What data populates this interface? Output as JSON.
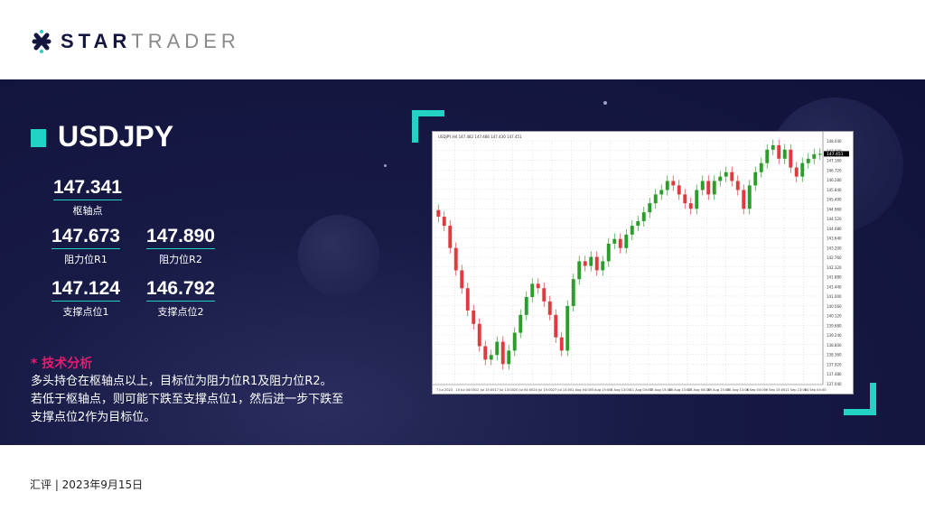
{
  "brand": {
    "word1": "STAR",
    "word2": "TRADER"
  },
  "symbol": "USDJPY",
  "levels": {
    "pivot": {
      "value": "147.341",
      "label": "枢轴点"
    },
    "r1": {
      "value": "147.673",
      "label": "阻力位R1"
    },
    "r2": {
      "value": "147.890",
      "label": "阻力位R2"
    },
    "s1": {
      "value": "147.124",
      "label": "支撑点位1"
    },
    "s2": {
      "value": "146.792",
      "label": "支撑点位2"
    }
  },
  "analysis": {
    "title": "* 技术分析",
    "lines": [
      "多头持仓在枢轴点以上，目标位为阻力位R1及阻力位R2。",
      "若低于枢轴点，则可能下跌至支撑点位1，然后进一步下跌至",
      "支撑点位2作为目标位。"
    ]
  },
  "footer": "汇评 | 2023年9月15日",
  "colors": {
    "accent": "#22d3c5",
    "highlight": "#e8196e",
    "navy": "#14163f",
    "up": "#2a9d2a",
    "down": "#e0393e"
  },
  "chart_data": {
    "type": "candlestick",
    "title": "USDJPY,H4 147.482 147.486 147.430 147.451",
    "ylim": [
      136.99,
      148.04
    ],
    "last_price": "147.451",
    "yticks": [
      "148.040",
      "147.600",
      "147.160",
      "146.720",
      "146.280",
      "145.840",
      "145.400",
      "144.960",
      "144.520",
      "144.080",
      "143.640",
      "143.200",
      "142.760",
      "142.320",
      "141.880",
      "141.440",
      "141.000",
      "140.560",
      "140.120",
      "139.680",
      "139.240",
      "138.800",
      "138.360",
      "137.920",
      "137.480",
      "137.040"
    ],
    "xticks": [
      "7 Jul 2023",
      "10 Jul 04:00",
      "12 Jul 15:00",
      "17 Jul 13:00",
      "20 Jul 04:00",
      "24 Jul 15:00",
      "27 Jul 13:00",
      "1 Aug 04:00",
      "3 Aug 15:00",
      "8 Aug 13:00",
      "11 Aug 04:00",
      "15 Aug 15:00",
      "18 Aug 13:00",
      "23 Aug 04:00",
      "25 Aug 15:00",
      "30 Aug 13:00",
      "4 Sep 04:00",
      "6 Sep 15:00",
      "11 Sep 13:00",
      "14 Sep 04:00"
    ],
    "grid": true,
    "closes": [
      144.6,
      144.19,
      143.18,
      142.17,
      141.36,
      140.35,
      139.74,
      138.73,
      138.12,
      138.33,
      138.93,
      137.92,
      138.53,
      139.34,
      140.15,
      140.96,
      141.56,
      141.36,
      140.76,
      140.15,
      139.13,
      138.53,
      140.55,
      141.77,
      142.58,
      142.37,
      142.78,
      142.17,
      142.58,
      143.38,
      143.59,
      143.18,
      143.79,
      144.19,
      144.4,
      144.8,
      145.21,
      145.61,
      145.81,
      146.22,
      146.02,
      145.61,
      145.21,
      144.96,
      145.81,
      146.22,
      145.61,
      146.22,
      146.42,
      146.62,
      146.22,
      145.81,
      144.96,
      146.02,
      146.62,
      147.03,
      147.64,
      147.84,
      147.23,
      147.64,
      146.83,
      146.42,
      147.03,
      147.23,
      147.43,
      147.45
    ]
  }
}
